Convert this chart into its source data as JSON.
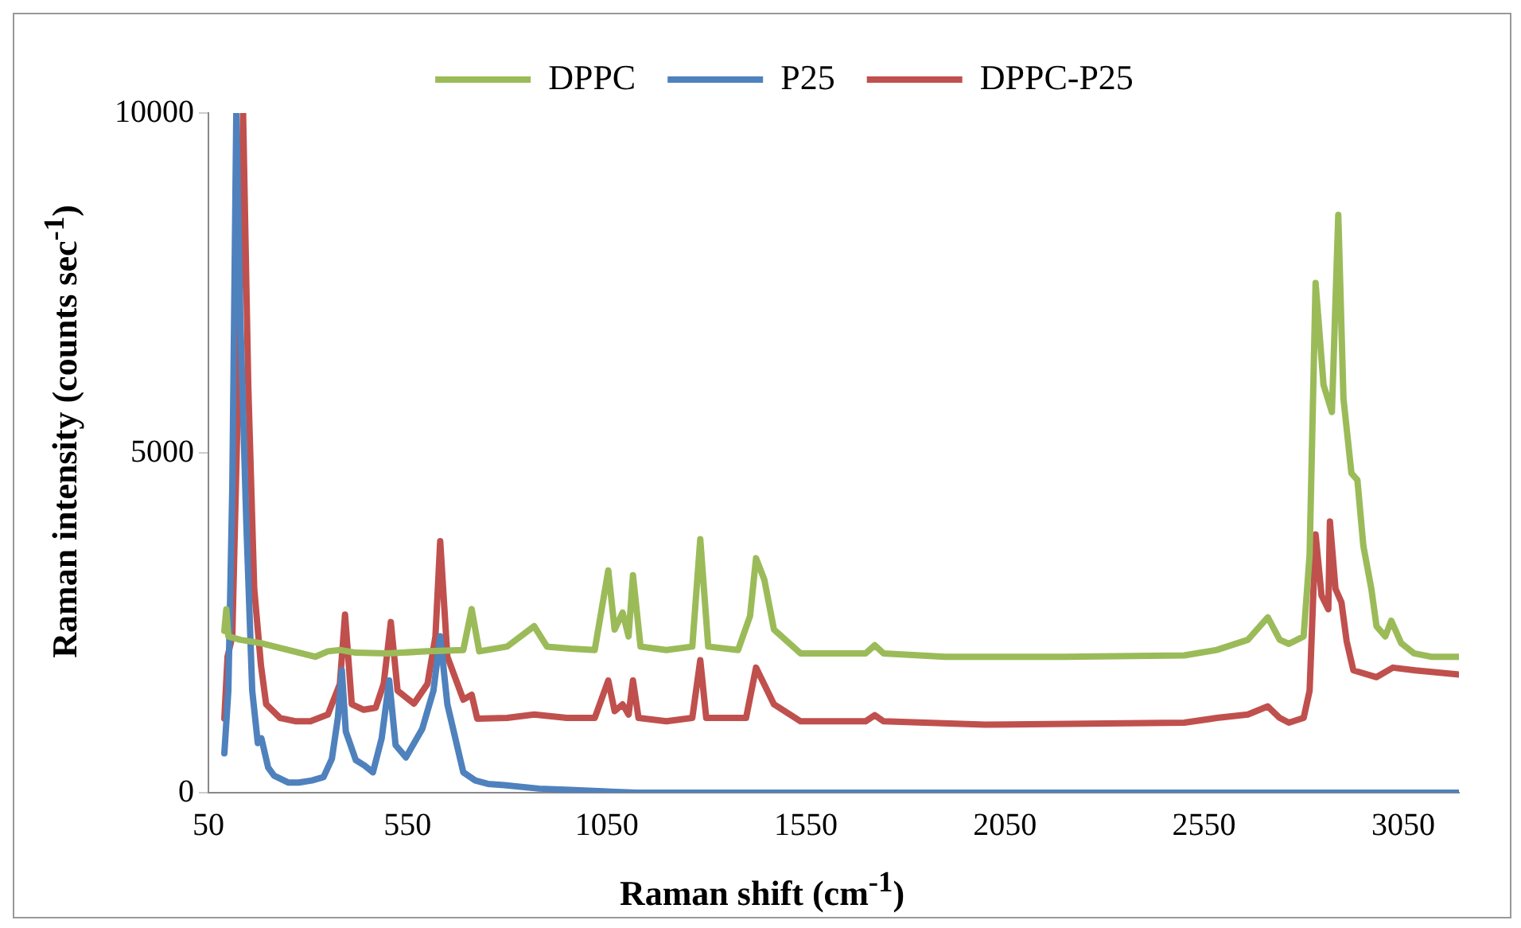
{
  "chart_data": {
    "type": "line",
    "xlabel": "Raman shift (cm$^{-1}$)",
    "ylabel": "Raman intensity (counts sec$^{-1}$)",
    "xlim": [
      50,
      3190
    ],
    "xticks": [
      50,
      550,
      1050,
      1550,
      2050,
      2550,
      3050
    ],
    "ylim": [
      0,
      10000
    ],
    "yticks": [
      0,
      5000,
      10000
    ],
    "grid": false,
    "legend": "top",
    "marker": "none",
    "line_style": "solid",
    "series": [
      {
        "name": "DPPC",
        "color": "#9bbb59",
        "x": [
          90,
          95,
          100,
          130,
          182,
          250,
          318,
          350,
          380,
          420,
          500,
          600,
          690,
          711,
          730,
          800,
          868,
          900,
          960,
          1020,
          1054,
          1070,
          1090,
          1105,
          1116,
          1135,
          1200,
          1265,
          1285,
          1305,
          1380,
          1410,
          1425,
          1435,
          1446,
          1470,
          1537,
          1650,
          1700,
          1723,
          1745,
          1900,
          2200,
          2500,
          2582,
          2660,
          2710,
          2740,
          2763,
          2800,
          2815,
          2830,
          2850,
          2871,
          2887,
          2900,
          2920,
          2935,
          2950,
          2970,
          2983,
          3005,
          3020,
          3045,
          3077,
          3120,
          3190
        ],
        "values": [
          2380,
          2700,
          2300,
          2250,
          2200,
          2100,
          2000,
          2080,
          2100,
          2060,
          2050,
          2080,
          2100,
          2700,
          2080,
          2150,
          2450,
          2150,
          2120,
          2100,
          3270,
          2400,
          2650,
          2300,
          3200,
          2150,
          2100,
          2150,
          3730,
          2150,
          2100,
          2600,
          3450,
          3300,
          3130,
          2400,
          2050,
          2050,
          2050,
          2170,
          2050,
          2000,
          2000,
          2020,
          2100,
          2250,
          2580,
          2250,
          2190,
          2300,
          3500,
          7500,
          6000,
          5600,
          8500,
          5800,
          4700,
          4600,
          3630,
          3000,
          2450,
          2300,
          2530,
          2200,
          2050,
          2000,
          2000
        ]
      },
      {
        "name": "P25",
        "color": "#4f81bd",
        "x": [
          90,
          100,
          110,
          120,
          130,
          145,
          160,
          174,
          183,
          200,
          215,
          250,
          277,
          310,
          339,
          360,
          375,
          385,
          395,
          420,
          442,
          463,
          485,
          504,
          520,
          546,
          587,
          615,
          632,
          650,
          690,
          720,
          752,
          793,
          880,
          959,
          1124,
          1500,
          2000,
          2500,
          3190
        ],
        "values": [
          580,
          1500,
          4500,
          10000,
          7000,
          4000,
          1500,
          730,
          800,
          370,
          250,
          150,
          150,
          180,
          230,
          500,
          1100,
          1800,
          900,
          480,
          400,
          300,
          800,
          1650,
          700,
          520,
          940,
          1500,
          2300,
          1300,
          300,
          180,
          130,
          110,
          60,
          40,
          0,
          0,
          0,
          0,
          0
        ]
      },
      {
        "name": "DPPC-P25",
        "color": "#c0504d",
        "x": [
          90,
          98,
          110,
          125,
          137,
          150,
          165,
          182,
          195,
          230,
          270,
          306,
          350,
          380,
          393,
          410,
          440,
          470,
          490,
          508,
          525,
          566,
          600,
          620,
          632,
          650,
          690,
          711,
          725,
          800,
          868,
          950,
          1020,
          1054,
          1070,
          1090,
          1105,
          1116,
          1130,
          1200,
          1265,
          1285,
          1300,
          1400,
          1425,
          1446,
          1470,
          1537,
          1700,
          1723,
          1745,
          2000,
          2500,
          2582,
          2660,
          2710,
          2740,
          2763,
          2800,
          2815,
          2830,
          2845,
          2862,
          2866,
          2880,
          2895,
          2908,
          2925,
          2983,
          3024,
          3080,
          3190
        ],
        "values": [
          1090,
          2000,
          2300,
          6000,
          10000,
          6000,
          3000,
          1870,
          1300,
          1100,
          1050,
          1050,
          1150,
          1600,
          2620,
          1300,
          1220,
          1250,
          1600,
          2510,
          1500,
          1310,
          1600,
          2300,
          3700,
          2000,
          1370,
          1440,
          1090,
          1100,
          1150,
          1100,
          1100,
          1650,
          1200,
          1300,
          1150,
          1650,
          1100,
          1050,
          1100,
          1950,
          1100,
          1100,
          1840,
          1590,
          1300,
          1050,
          1050,
          1140,
          1050,
          1000,
          1030,
          1100,
          1150,
          1270,
          1100,
          1030,
          1100,
          1500,
          3800,
          2900,
          2700,
          3990,
          3000,
          2800,
          2230,
          1800,
          1700,
          1840,
          1800,
          1740
        ]
      }
    ]
  }
}
